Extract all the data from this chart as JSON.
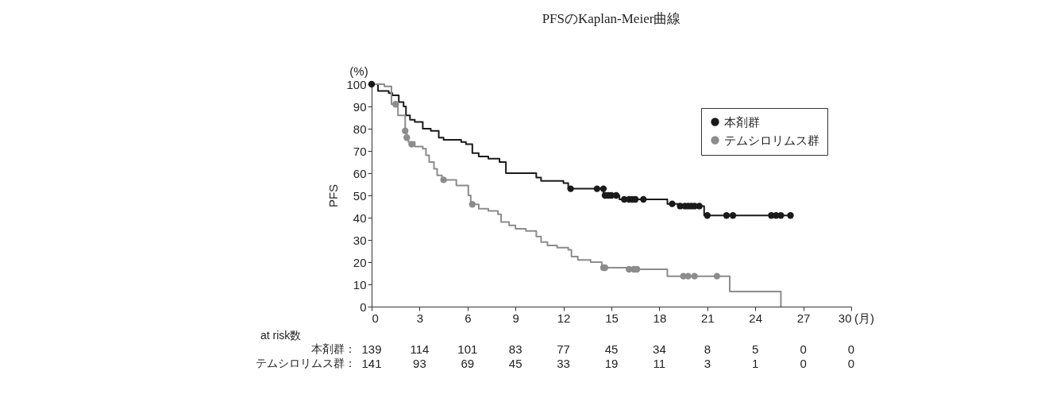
{
  "chart_data": {
    "type": "step",
    "title": "PFSのKaplan-Meier曲線",
    "xlabel": "(月)",
    "ylabel": "PFS",
    "annotations": [
      "(%)",
      "at risk数",
      "本剤群： 139 114 101 83 77 45 34 8 5 0 0",
      "テムシロリムス群： 141 93 69 45 33 19 11 3 1 0 0"
    ],
    "xlim": [
      0,
      30
    ],
    "xticks": [
      0,
      3,
      6,
      9,
      12,
      15,
      18,
      21,
      24,
      27,
      30
    ],
    "ylim": [
      0,
      100
    ],
    "yticks": [
      0,
      10,
      20,
      30,
      40,
      50,
      60,
      70,
      80,
      90,
      100
    ],
    "legend": "top right",
    "series": [
      {
        "name": "本剤群",
        "color": "#1a1a1a",
        "x": [
          0,
          0.4,
          1.07,
          1.3,
          1.7,
          2.0,
          2.15,
          2.4,
          2.7,
          3.2,
          3.7,
          4.2,
          4.5,
          5.6,
          5.9,
          6.3,
          6.7,
          7.3,
          8.0,
          8.4,
          10.3,
          10.6,
          12.0,
          12.3,
          14.5,
          15.5,
          18.5,
          19.3,
          20.8,
          26.2
        ],
        "values": [
          100,
          97,
          96,
          95,
          92,
          90,
          86,
          84,
          83,
          80,
          79,
          76,
          75,
          74,
          73,
          69,
          67.5,
          66.5,
          65,
          60,
          58,
          56.5,
          55.5,
          53,
          50,
          48.2,
          46.2,
          45.2,
          41,
          41
        ]
      },
      {
        "name": "テムシロリムス群",
        "color": "#8c8c8c",
        "x": [
          0,
          0.8,
          1.24,
          1.65,
          2.1,
          2.2,
          2.3,
          2.7,
          3.2,
          3.4,
          3.6,
          3.9,
          4.1,
          4.4,
          5.3,
          6.05,
          6.2,
          6.7,
          7.3,
          7.9,
          8.1,
          8.6,
          9.0,
          9.65,
          10.3,
          10.6,
          11.0,
          11.6,
          12.3,
          12.5,
          12.9,
          13.7,
          14.4,
          16.0,
          18.5,
          22.4,
          25.6
        ],
        "values": [
          100,
          99,
          91,
          86,
          79,
          76,
          74,
          72,
          71,
          68,
          65,
          62,
          59,
          57,
          54.5,
          50,
          46,
          44,
          43,
          41.5,
          38,
          36.5,
          35,
          34,
          31.5,
          29,
          27.5,
          26.5,
          25.5,
          22.5,
          21,
          20,
          17.5,
          16.8,
          13.7,
          6.8,
          0
        ]
      },
      {
        "type": "scatter",
        "color": "#1a1a1a",
        "x": [
          0,
          12.45,
          14.1,
          14.5,
          14.6,
          14.8,
          15.0,
          15.3,
          15.8,
          16.1,
          16.3,
          16.5,
          17.0,
          18.8,
          19.3,
          19.6,
          19.8,
          20.0,
          20.2,
          20.5,
          21.0,
          22.2,
          22.6,
          25.0,
          25.3,
          25.6,
          26.2
        ],
        "values": [
          100,
          53,
          53,
          53,
          50,
          50,
          50,
          50,
          48.2,
          48.2,
          48.2,
          48.2,
          48.2,
          46.2,
          45.2,
          45.2,
          45.2,
          45.2,
          45.2,
          45.2,
          41,
          41,
          41,
          41,
          41,
          41,
          41
        ]
      },
      {
        "type": "scatter",
        "color": "#8c8c8c",
        "x": [
          1.5,
          2.1,
          2.2,
          2.5,
          4.5,
          6.3,
          14.5,
          14.6,
          16.1,
          16.4,
          16.6,
          19.5,
          19.8,
          20.2,
          21.6
        ],
        "values": [
          91,
          79,
          76,
          73,
          57,
          46,
          17.5,
          17.5,
          16.8,
          16.8,
          16.8,
          13.7,
          13.7,
          13.7,
          13.7
        ]
      }
    ]
  }
}
